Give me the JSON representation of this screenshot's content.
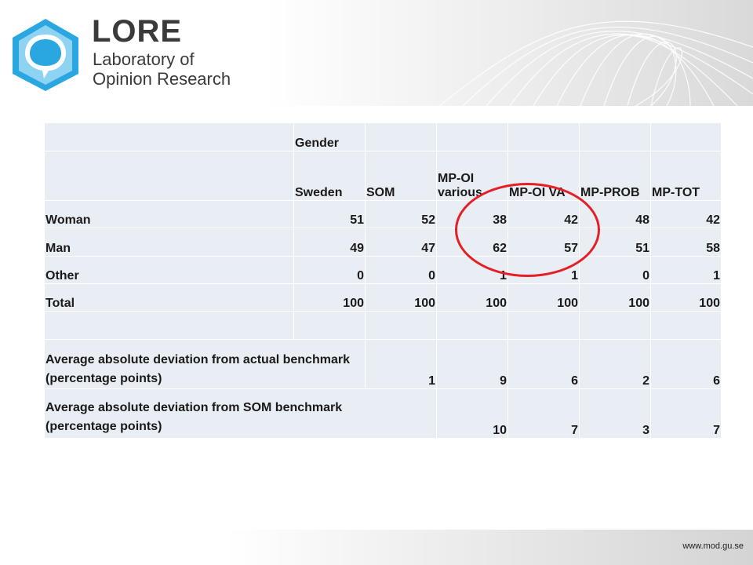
{
  "logo": {
    "title": "LORE",
    "subtitle_line1": "Laboratory of",
    "subtitle_line2": "Opinion Research"
  },
  "table": {
    "group_header": "Gender",
    "columns": [
      "Sweden",
      "SOM",
      "MP-OI various",
      "MP-OI VA",
      "MP-PROB",
      "MP-TOT"
    ],
    "rows": [
      {
        "label": "Woman",
        "values": [
          "51",
          "52",
          "38",
          "42",
          "48",
          "42"
        ]
      },
      {
        "label": "Man",
        "values": [
          "49",
          "47",
          "62",
          "57",
          "51",
          "58"
        ]
      },
      {
        "label": "Other",
        "values": [
          "0",
          "0",
          "1",
          "1",
          "0",
          "1"
        ]
      },
      {
        "label": "Total",
        "values": [
          "100",
          "100",
          "100",
          "100",
          "100",
          "100"
        ]
      }
    ],
    "deviation_actual": {
      "label": "Average absolute deviation from actual benchmark (percentage points)",
      "values": [
        "1",
        "9",
        "6",
        "2",
        "6"
      ]
    },
    "deviation_som": {
      "label": "Average absolute deviation from SOM benchmark (percentage points)",
      "values": [
        "10",
        "7",
        "3",
        "7"
      ]
    }
  },
  "footer": {
    "url": "www.mod.gu.se"
  },
  "colors": {
    "cell_bg": "#e9edf4",
    "highlight_circle": "#e41f26",
    "logo_blue": "#2aa6e0"
  }
}
